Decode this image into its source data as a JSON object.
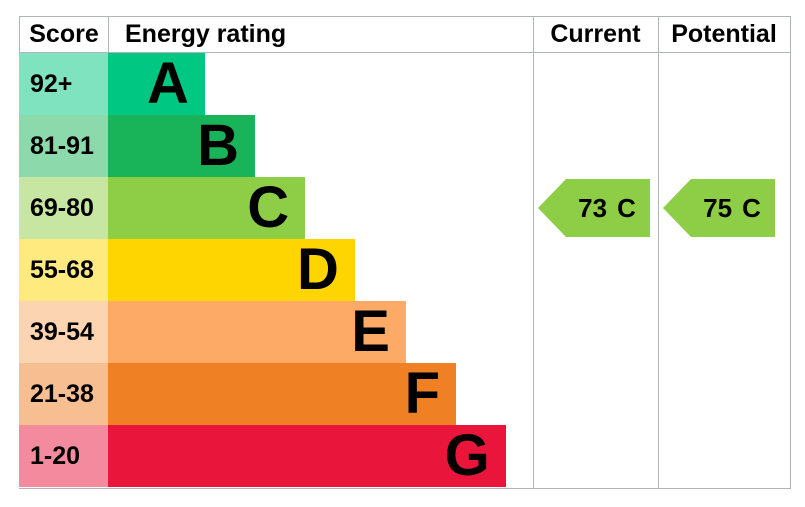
{
  "header": {
    "score": "Score",
    "energy_rating": "Energy rating",
    "current": "Current",
    "potential": "Potential"
  },
  "bands": [
    {
      "letter": "A",
      "score": "92+",
      "color": "#00c781",
      "tint": "#80e3c0",
      "width": "22.8%"
    },
    {
      "letter": "B",
      "score": "81-91",
      "color": "#19b459",
      "tint": "#8cd9ac",
      "width": "34.6%"
    },
    {
      "letter": "C",
      "score": "69-80",
      "color": "#8dce46",
      "tint": "#c6e6a2",
      "width": "46.4%"
    },
    {
      "letter": "D",
      "score": "55-68",
      "color": "#ffd500",
      "tint": "#ffea80",
      "width": "58.1%"
    },
    {
      "letter": "E",
      "score": "39-54",
      "color": "#fcaa65",
      "tint": "#fdd4b2",
      "width": "70.1%"
    },
    {
      "letter": "F",
      "score": "21-38",
      "color": "#ef8023",
      "tint": "#f7bf91",
      "width": "81.9%"
    },
    {
      "letter": "G",
      "score": "1-20",
      "color": "#e9153b",
      "tint": "#f48a9d",
      "width": "93.6%"
    }
  ],
  "current": {
    "value": "73",
    "band": "C",
    "color": "#8dce46"
  },
  "potential": {
    "value": "75",
    "band": "C",
    "color": "#8dce46"
  },
  "chart_data": {
    "type": "bar",
    "title": "Energy rating",
    "orientation": "horizontal",
    "categories": [
      "A",
      "B",
      "C",
      "D",
      "E",
      "F",
      "G"
    ],
    "score_ranges": [
      "92+",
      "81-91",
      "69-80",
      "55-68",
      "39-54",
      "21-38",
      "1-20"
    ],
    "bar_lengths_pct_of_column": [
      22.8,
      34.6,
      46.4,
      58.1,
      70.1,
      81.9,
      93.6
    ],
    "band_colors": [
      "#00c781",
      "#19b459",
      "#8dce46",
      "#ffd500",
      "#fcaa65",
      "#ef8023",
      "#e9153b"
    ],
    "columns": [
      "Score",
      "Energy rating",
      "Current",
      "Potential"
    ],
    "current": {
      "score": 73,
      "band": "C"
    },
    "potential": {
      "score": 75,
      "band": "C"
    },
    "legend_position": "none",
    "grid": false
  }
}
